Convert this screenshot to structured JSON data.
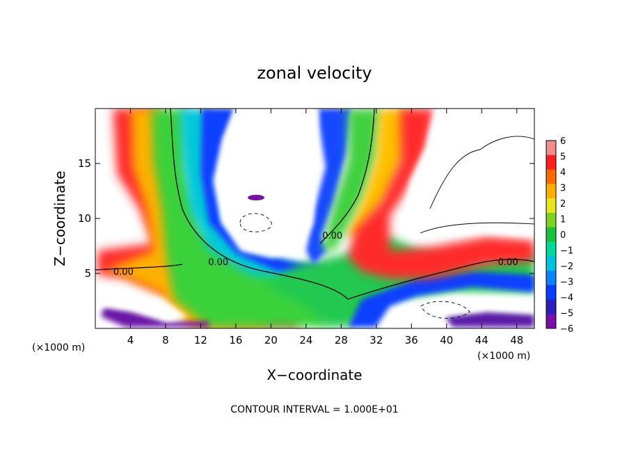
{
  "chart_data": {
    "type": "heatmap",
    "title": "zonal velocity",
    "xlabel": "X−coordinate",
    "ylabel": "Z−coordinate",
    "x_unit_left": "(×1000 m)",
    "x_unit_right": "(×1000 m)",
    "footer": "CONTOUR INTERVAL = 1.000E+01",
    "xlim": [
      0,
      50
    ],
    "ylim": [
      0,
      20
    ],
    "x_ticks": [
      4,
      8,
      12,
      16,
      20,
      24,
      28,
      32,
      36,
      40,
      44,
      48
    ],
    "y_ticks": [
      5,
      10,
      15
    ],
    "colorbar": {
      "levels": [
        -6,
        -5,
        -4,
        -3,
        -2,
        -1,
        0,
        1,
        2,
        3,
        4,
        5,
        6
      ],
      "labels": [
        "−6",
        "−5",
        "−4",
        "−3",
        "−2",
        "−1",
        "0",
        "1",
        "2",
        "3",
        "4",
        "5",
        "6"
      ],
      "colors": [
        "#7a0fa6",
        "#2a1fb8",
        "#0a3cff",
        "#0a82ff",
        "#00c2e0",
        "#00d99a",
        "#18c23a",
        "#7ed321",
        "#e6e620",
        "#ffb000",
        "#ff6a00",
        "#ff1e1e",
        "#f08c8c"
      ]
    },
    "contour_labels": [
      {
        "text": "0.00",
        "x": 3.2,
        "y": 5.0
      },
      {
        "text": "0.00",
        "x": 14.0,
        "y": 5.9
      },
      {
        "text": "0.00",
        "x": 27.0,
        "y": 8.3
      },
      {
        "text": "0.00",
        "x": 47.0,
        "y": 5.9
      }
    ]
  }
}
